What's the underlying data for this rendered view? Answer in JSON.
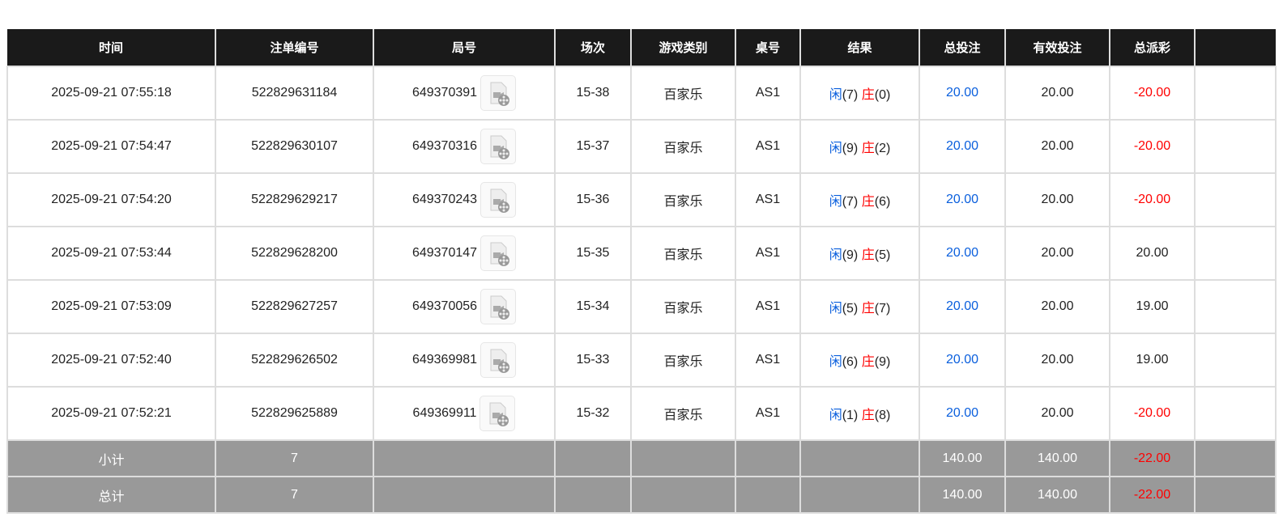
{
  "headers": [
    "时间",
    "注单编号",
    "局号",
    "场次",
    "游戏类别",
    "桌号",
    "结果",
    "总投注",
    "有效投注",
    "总派彩",
    ""
  ],
  "rows": [
    {
      "time": "2025-09-21 07:55:18",
      "bet_id": "522829631184",
      "round": "649370391",
      "session": "15-38",
      "game": "百家乐",
      "table": "AS1",
      "player": "闲",
      "player_pts": "(7)",
      "banker": "庄",
      "banker_pts": "(0)",
      "total_bet": "20.00",
      "valid_bet": "20.00",
      "payout": "-20.00",
      "payout_negative": true
    },
    {
      "time": "2025-09-21 07:54:47",
      "bet_id": "522829630107",
      "round": "649370316",
      "session": "15-37",
      "game": "百家乐",
      "table": "AS1",
      "player": "闲",
      "player_pts": "(9)",
      "banker": "庄",
      "banker_pts": "(2)",
      "total_bet": "20.00",
      "valid_bet": "20.00",
      "payout": "-20.00",
      "payout_negative": true
    },
    {
      "time": "2025-09-21 07:54:20",
      "bet_id": "522829629217",
      "round": "649370243",
      "session": "15-36",
      "game": "百家乐",
      "table": "AS1",
      "player": "闲",
      "player_pts": "(7)",
      "banker": "庄",
      "banker_pts": "(6)",
      "total_bet": "20.00",
      "valid_bet": "20.00",
      "payout": "-20.00",
      "payout_negative": true
    },
    {
      "time": "2025-09-21 07:53:44",
      "bet_id": "522829628200",
      "round": "649370147",
      "session": "15-35",
      "game": "百家乐",
      "table": "AS1",
      "player": "闲",
      "player_pts": "(9)",
      "banker": "庄",
      "banker_pts": "(5)",
      "total_bet": "20.00",
      "valid_bet": "20.00",
      "payout": "20.00",
      "payout_negative": false
    },
    {
      "time": "2025-09-21 07:53:09",
      "bet_id": "522829627257",
      "round": "649370056",
      "session": "15-34",
      "game": "百家乐",
      "table": "AS1",
      "player": "闲",
      "player_pts": "(5)",
      "banker": "庄",
      "banker_pts": "(7)",
      "total_bet": "20.00",
      "valid_bet": "20.00",
      "payout": "19.00",
      "payout_negative": false
    },
    {
      "time": "2025-09-21 07:52:40",
      "bet_id": "522829626502",
      "round": "649369981",
      "session": "15-33",
      "game": "百家乐",
      "table": "AS1",
      "player": "闲",
      "player_pts": "(6)",
      "banker": "庄",
      "banker_pts": "(9)",
      "total_bet": "20.00",
      "valid_bet": "20.00",
      "payout": "19.00",
      "payout_negative": false
    },
    {
      "time": "2025-09-21 07:52:21",
      "bet_id": "522829625889",
      "round": "649369911",
      "session": "15-32",
      "game": "百家乐",
      "table": "AS1",
      "player": "闲",
      "player_pts": "(1)",
      "banker": "庄",
      "banker_pts": "(8)",
      "total_bet": "20.00",
      "valid_bet": "20.00",
      "payout": "-20.00",
      "payout_negative": true
    }
  ],
  "summary": [
    {
      "label": "小计",
      "count": "7",
      "total_bet": "140.00",
      "valid_bet": "140.00",
      "payout": "-22.00"
    },
    {
      "label": "总计",
      "count": "7",
      "total_bet": "140.00",
      "valid_bet": "140.00",
      "payout": "-22.00"
    }
  ],
  "icons": {
    "replay": "video-replay-icon"
  },
  "colors": {
    "header_bg": "#1a1a1a",
    "player": "#0a5fdd",
    "banker": "#ff0000",
    "summary_bg": "#999999"
  }
}
